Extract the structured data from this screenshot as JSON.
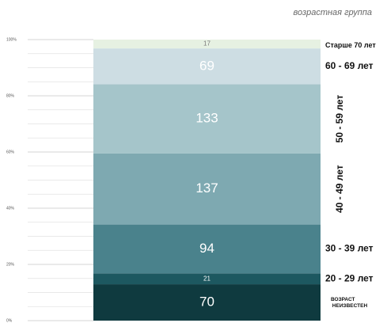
{
  "chart_data": {
    "type": "stacked_percent_bar",
    "title": "возрастная группа",
    "categories": [
      "ВОЗРАСТ НЕИЗВЕСТЕН",
      "20 - 29 лет",
      "30 - 39 лет",
      "40 - 49 лет",
      "50 - 59 лет",
      "60 - 69 лет",
      "Старше 70 лет"
    ],
    "values": [
      70,
      21,
      94,
      137,
      133,
      69,
      17
    ],
    "colors": [
      "#0f3a3f",
      "#1d5860",
      "#4a828c",
      "#7ea9b1",
      "#a5c5ca",
      "#cddde3",
      "#e6f1e2"
    ],
    "ylim": [
      0,
      100
    ],
    "yticks": [
      {
        "value": 0,
        "label": "0%"
      },
      {
        "value": 20,
        "label": "20%"
      },
      {
        "value": 40,
        "label": "40%"
      },
      {
        "value": 60,
        "label": "60%"
      },
      {
        "value": 80,
        "label": "80%"
      },
      {
        "value": 100,
        "label": "100%"
      }
    ],
    "minor_yticks": [
      5,
      10,
      15,
      25,
      30,
      35,
      45,
      50,
      55,
      65,
      70,
      75,
      85,
      90,
      95
    ],
    "grid": true
  }
}
